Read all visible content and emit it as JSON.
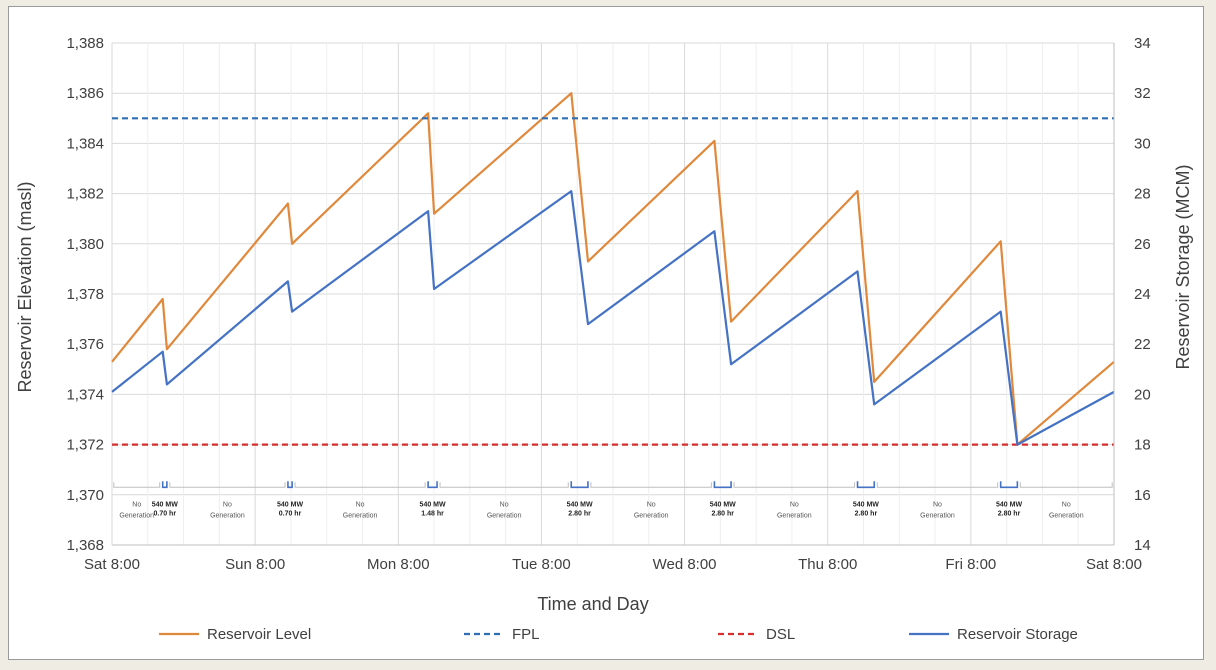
{
  "chart_data": {
    "type": "line",
    "xlabel": "Time and Day",
    "ylabel": "Reservoir Elevation (masl)",
    "y2label": "Reservoir Storage (MCM)",
    "x_tick_labels": [
      "Sat 8:00",
      "Sun 8:00",
      "Mon 8:00",
      "Tue 8:00",
      "Wed 8:00",
      "Thu 8:00",
      "Fri 8:00",
      "Sat 8:00"
    ],
    "x_unit": "hours from Sat 8:00",
    "xlim": [
      0,
      168
    ],
    "ylim": [
      1368,
      1388
    ],
    "y_ticks": [
      "1,368",
      "1,370",
      "1,372",
      "1,374",
      "1,376",
      "1,378",
      "1,380",
      "1,382",
      "1,384",
      "1,386",
      "1,388"
    ],
    "y2lim": [
      14,
      34
    ],
    "y2_ticks": [
      "14",
      "16",
      "18",
      "20",
      "22",
      "24",
      "26",
      "28",
      "30",
      "32",
      "34"
    ],
    "grid": true,
    "legend_position": "bottom",
    "series": [
      {
        "name": "Reservoir Level",
        "axis": "left",
        "color": "#e0883b",
        "x": [
          0,
          8.5,
          9.2,
          29.5,
          30.2,
          53,
          54,
          77,
          79.8,
          101,
          103.8,
          125,
          127.8,
          149,
          151.8,
          168
        ],
        "y": [
          1375.3,
          1377.8,
          1375.8,
          1381.6,
          1380.0,
          1385.2,
          1381.2,
          1386.0,
          1379.3,
          1384.1,
          1376.9,
          1382.1,
          1374.5,
          1380.1,
          1372.0,
          1375.3
        ]
      },
      {
        "name": "FPL",
        "axis": "left",
        "style": "dashed",
        "color": "#2e6fb3",
        "x": [
          0,
          168
        ],
        "y": [
          1385,
          1385
        ]
      },
      {
        "name": "DSL",
        "axis": "left",
        "style": "dashed",
        "color": "#d62d2d",
        "x": [
          0,
          168
        ],
        "y": [
          1372,
          1372
        ]
      },
      {
        "name": "Reservoir Storage",
        "axis": "right",
        "color": "#4472c4",
        "x": [
          0,
          8.5,
          9.2,
          29.5,
          30.2,
          53,
          54,
          77,
          79.8,
          101,
          103.8,
          125,
          127.8,
          149,
          151.8,
          168
        ],
        "y": [
          20.1,
          21.7,
          20.4,
          24.5,
          23.3,
          27.3,
          24.2,
          28.1,
          22.8,
          26.5,
          21.2,
          24.9,
          19.6,
          23.3,
          18.0,
          20.1
        ]
      }
    ],
    "annotations": {
      "no_generation": [
        "No",
        "Generation"
      ],
      "segments": [
        {
          "type": "idle",
          "x0": 0.3,
          "x1": 8.0
        },
        {
          "type": "gen",
          "x0": 8.5,
          "x1": 9.2,
          "mw": "540 MW",
          "hr": "0.70 hr"
        },
        {
          "type": "idle",
          "x0": 9.7,
          "x1": 29.0
        },
        {
          "type": "gen",
          "x0": 29.5,
          "x1": 30.2,
          "mw": "540 MW",
          "hr": "0.70 hr"
        },
        {
          "type": "idle",
          "x0": 30.7,
          "x1": 52.5
        },
        {
          "type": "gen",
          "x0": 53.0,
          "x1": 54.5,
          "mw": "540 MW",
          "hr": "1.48 hr"
        },
        {
          "type": "idle",
          "x0": 55.0,
          "x1": 76.5
        },
        {
          "type": "gen",
          "x0": 77.0,
          "x1": 79.8,
          "mw": "540 MW",
          "hr": "2.80 hr"
        },
        {
          "type": "idle",
          "x0": 80.3,
          "x1": 100.5
        },
        {
          "type": "gen",
          "x0": 101.0,
          "x1": 103.8,
          "mw": "540 MW",
          "hr": "2.80 hr"
        },
        {
          "type": "idle",
          "x0": 104.3,
          "x1": 124.5
        },
        {
          "type": "gen",
          "x0": 125.0,
          "x1": 127.8,
          "mw": "540 MW",
          "hr": "2.80 hr"
        },
        {
          "type": "idle",
          "x0": 128.3,
          "x1": 148.5
        },
        {
          "type": "gen",
          "x0": 149.0,
          "x1": 151.8,
          "mw": "540 MW",
          "hr": "2.80 hr"
        },
        {
          "type": "idle",
          "x0": 152.3,
          "x1": 167.7
        }
      ]
    }
  }
}
